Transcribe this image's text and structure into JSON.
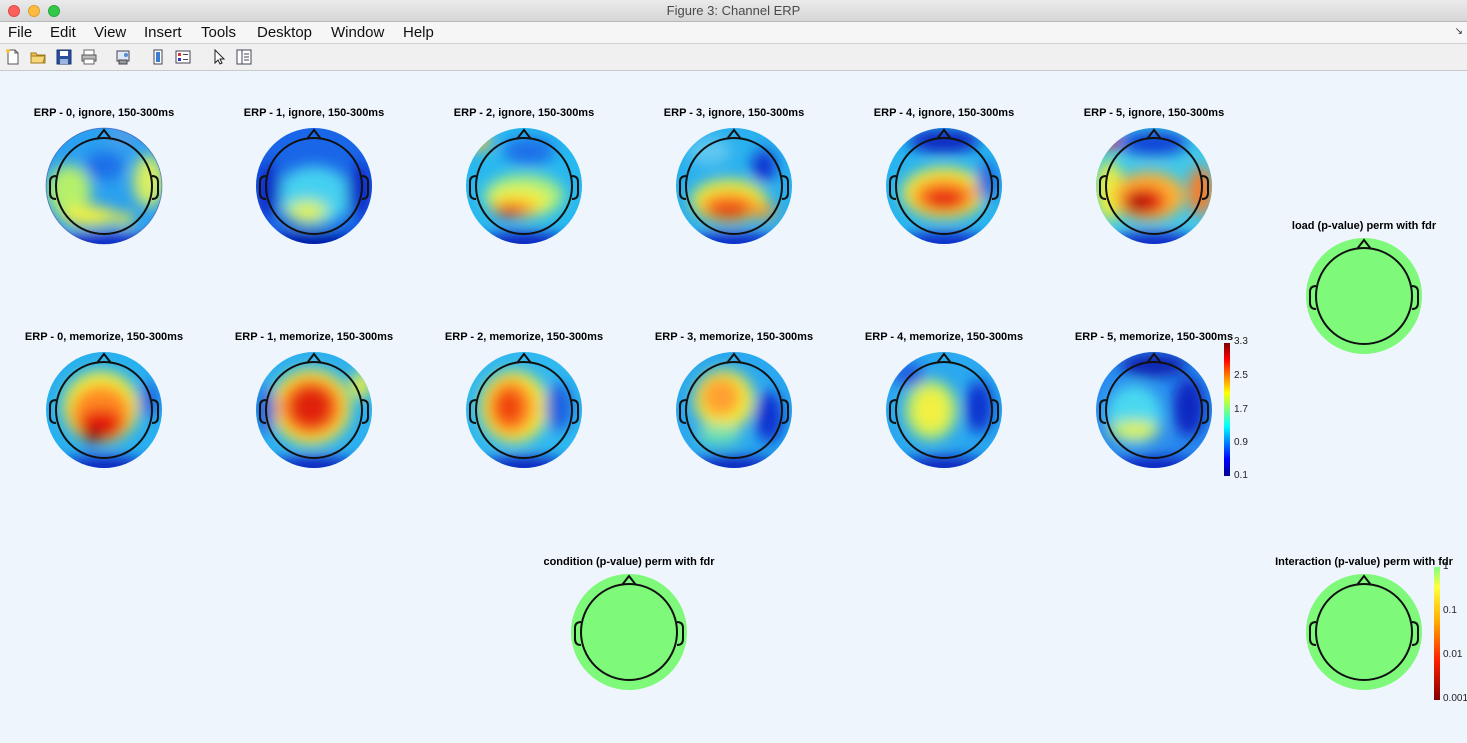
{
  "window": {
    "title": "Figure 3: Channel ERP"
  },
  "menu": [
    "File",
    "Edit",
    "View",
    "Insert",
    "Tools",
    "Desktop",
    "Window",
    "Help"
  ],
  "toolbar": [
    {
      "name": "new-figure-icon"
    },
    {
      "name": "open-file-icon"
    },
    {
      "name": "save-icon"
    },
    {
      "name": "print-icon"
    },
    {
      "name": "print-preview-icon"
    },
    {
      "name": "link-plot-icon"
    },
    {
      "name": "insert-legend-icon"
    },
    {
      "name": "edit-plot-icon"
    },
    {
      "name": "property-inspector-icon"
    }
  ],
  "plots": {
    "ignore": [
      "ERP - 0, ignore, 150-300ms",
      "ERP - 1, ignore, 150-300ms",
      "ERP - 2, ignore, 150-300ms",
      "ERP - 3, ignore, 150-300ms",
      "ERP - 4, ignore, 150-300ms",
      "ERP - 5, ignore, 150-300ms"
    ],
    "memorize": [
      "ERP - 0, memorize, 150-300ms",
      "ERP - 1, memorize, 150-300ms",
      "ERP - 2, memorize, 150-300ms",
      "ERP - 3, memorize, 150-300ms",
      "ERP - 4, memorize, 150-300ms",
      "ERP - 5, memorize, 150-300ms"
    ],
    "load_title": "load (p-value) perm with fdr",
    "condition_title": "condition (p-value) perm with fdr",
    "interaction_title": "Interaction (p-value) perm with fdr"
  },
  "colorbars": {
    "erp": {
      "ticks": [
        "3.3",
        "2.5",
        "1.7",
        "0.9",
        "0.1"
      ]
    },
    "pvalue": {
      "ticks": [
        "1",
        "0.1",
        "0.01",
        "0.001"
      ]
    }
  },
  "colors": {
    "stat_fill": "#7ef97a",
    "head_outline": "#111111"
  }
}
